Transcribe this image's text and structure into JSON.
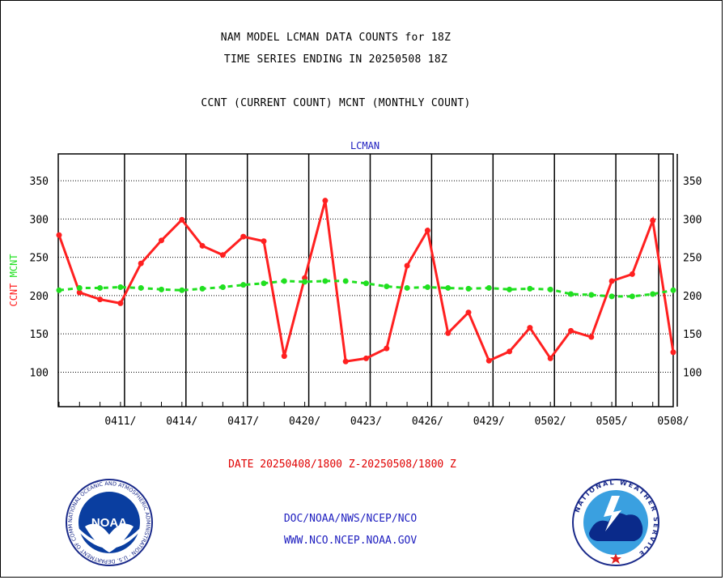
{
  "titles": {
    "line1": "NAM MODEL LCMAN DATA COUNTS for 18Z",
    "line2": "TIME SERIES ENDING IN 20250508 18Z",
    "line3": "CCNT (CURRENT COUNT) MCNT (MONTHLY COUNT)"
  },
  "footer": {
    "date_range": "DATE 20250408/1800 Z-20250508/1800 Z",
    "org": "DOC/NOAA/NWS/NCEP/NCO",
    "url": "WWW.NCO.NCEP.NOAA.GOV"
  },
  "logos": {
    "left": {
      "text": "NOAA",
      "ring": "NATIONAL OCEANIC AND ATMOSPHERIC ADMINISTRATION · U.S. DEPARTMENT OF COMMERCE"
    },
    "right": {
      "ring": "NATIONAL WEATHER SERVICE"
    }
  },
  "colors": {
    "ccnt": "#ff2020",
    "mcnt": "#20e020",
    "axis_label": "#2020c0",
    "footer_red": "#e00000",
    "footer_blue": "#2020c0"
  },
  "chart_data": {
    "type": "line",
    "title": "LCMAN",
    "ylabel_parts": [
      {
        "text": "CCNT",
        "color": "#ff2020"
      },
      {
        "text": "MCNT",
        "color": "#20e020"
      }
    ],
    "ylim": [
      55,
      385
    ],
    "yticks": [
      100,
      150,
      200,
      250,
      300,
      350
    ],
    "grid": true,
    "x_start": "2025-04-08 18Z",
    "x_end": "2025-05-08 18Z",
    "xticks": [
      "0411/",
      "0414/",
      "0417/",
      "0420/",
      "0423/",
      "0426/",
      "0429/",
      "0502/",
      "0505/",
      "0508/"
    ],
    "x": [
      "0408",
      "0409",
      "0410",
      "0411",
      "0412",
      "0413",
      "0414",
      "0415",
      "0416",
      "0417",
      "0418",
      "0419",
      "0420",
      "0421",
      "0422",
      "0423",
      "0424",
      "0425",
      "0426",
      "0427",
      "0428",
      "0429",
      "0430",
      "0501",
      "0502",
      "0503",
      "0504",
      "0505",
      "0506",
      "0507",
      "0508"
    ],
    "series": [
      {
        "name": "CCNT",
        "color": "#ff2020",
        "style": "solid",
        "values": [
          279,
          204,
          195,
          190,
          242,
          272,
          299,
          265,
          253,
          277,
          271,
          121,
          223,
          324,
          114,
          118,
          131,
          239,
          285,
          151,
          178,
          115,
          127,
          158,
          118,
          154,
          146,
          219,
          228,
          298,
          126
        ]
      },
      {
        "name": "MCNT",
        "color": "#20e020",
        "style": "dashed",
        "values": [
          207,
          210,
          210,
          211,
          210,
          208,
          207,
          209,
          211,
          214,
          216,
          219,
          218,
          219,
          219,
          216,
          212,
          210,
          211,
          210,
          209,
          210,
          208,
          209,
          208,
          202,
          201,
          199,
          199,
          202,
          207
        ]
      }
    ]
  }
}
